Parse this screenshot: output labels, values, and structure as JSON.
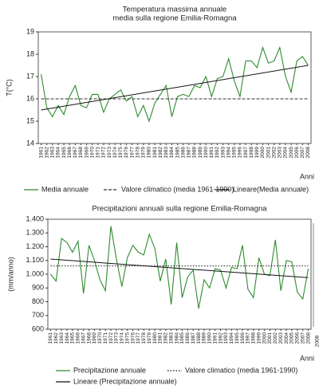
{
  "chart_data": [
    {
      "type": "line",
      "title": [
        "Temperatura massima annuale",
        "media sulla regione Emilia-Romagna"
      ],
      "y_label": "T(°C)",
      "x_label": "Anni",
      "x": [
        1961,
        1962,
        1963,
        1964,
        1965,
        1966,
        1967,
        1968,
        1969,
        1970,
        1971,
        1972,
        1973,
        1974,
        1975,
        1976,
        1977,
        1978,
        1979,
        1980,
        1981,
        1982,
        1983,
        1984,
        1985,
        1986,
        1987,
        1988,
        1989,
        1990,
        1991,
        1992,
        1993,
        1994,
        1995,
        1996,
        1997,
        1998,
        1999,
        2000,
        2001,
        2002,
        2003,
        2004,
        2005,
        2006,
        2007,
        2008
      ],
      "xlim": [
        1960.5,
        2008.5
      ],
      "ylim": [
        14,
        19
      ],
      "yticks": [
        14,
        15,
        16,
        17,
        18,
        19
      ],
      "series": [
        {
          "name": "Media annuale",
          "color": "#2e8b2e",
          "linestyle": "solid",
          "values": [
            17.1,
            15.6,
            15.2,
            15.7,
            15.3,
            16.1,
            16.6,
            15.7,
            15.6,
            16.2,
            16.2,
            15.4,
            16.0,
            16.2,
            16.4,
            15.9,
            16.1,
            15.2,
            15.7,
            15.0,
            15.8,
            16.2,
            16.6,
            15.2,
            16.1,
            16.2,
            16.1,
            16.6,
            16.5,
            17.0,
            16.1,
            16.9,
            17.0,
            17.8,
            16.8,
            16.1,
            17.7,
            17.7,
            17.4,
            18.3,
            17.6,
            17.7,
            18.3,
            17.0,
            16.3,
            17.7,
            17.9,
            17.5
          ]
        },
        {
          "name": "Valore climatico (media 1961-1990)",
          "color": "#333333",
          "linestyle": "dashed",
          "x": [
            1961,
            2008
          ],
          "values": [
            16.0,
            16.0
          ]
        },
        {
          "name": "Lineare(Media annuale)",
          "color": "#111111",
          "linestyle": "solid",
          "x": [
            1961,
            2008
          ],
          "values": [
            15.5,
            17.5
          ]
        }
      ]
    },
    {
      "type": "line",
      "title": [
        "Precipitazioni annuali sulla regione Emilia-Romagna"
      ],
      "y_label": "(mm/anno)",
      "x_label": "Anni",
      "x": [
        1961,
        1962,
        1963,
        1964,
        1965,
        1966,
        1967,
        1968,
        1969,
        1970,
        1971,
        1972,
        1973,
        1974,
        1975,
        1976,
        1977,
        1978,
        1979,
        1980,
        1981,
        1982,
        1983,
        1984,
        1985,
        1986,
        1987,
        1988,
        1989,
        1990,
        1991,
        1992,
        1993,
        1994,
        1995,
        1996,
        1997,
        1998,
        1999,
        2000,
        2001,
        2002,
        2003,
        2004,
        2005,
        2006,
        2007,
        2008
      ],
      "xlim": [
        1960.5,
        2008.5
      ],
      "ylim": [
        600,
        1400
      ],
      "yticks": [
        600,
        700,
        800,
        900,
        {
          "value": 1000,
          "label": "1.000"
        },
        {
          "value": 1100,
          "label": "1.100"
        },
        {
          "value": 1200,
          "label": "1.200"
        },
        {
          "value": 1300,
          "label": "1.300"
        },
        {
          "value": 1400,
          "label": "1.400"
        }
      ],
      "annotation": "2008",
      "series": [
        {
          "name": "Precipitazione annuale",
          "color": "#2e8b2e",
          "linestyle": "solid",
          "values": [
            1000,
            950,
            1260,
            1230,
            1160,
            1240,
            860,
            1210,
            1100,
            960,
            880,
            1350,
            1110,
            910,
            1120,
            1210,
            1160,
            1140,
            1290,
            1190,
            950,
            1110,
            780,
            1230,
            830,
            980,
            1030,
            750,
            960,
            900,
            1040,
            1030,
            900,
            1050,
            1040,
            1210,
            890,
            830,
            1120,
            1000,
            990,
            1250,
            880,
            1100,
            1090,
            870,
            820,
            1040
          ]
        },
        {
          "name": "Valore climatico  (media 1961-1990)",
          "color": "#111111",
          "linestyle": "dotted",
          "x": [
            1961,
            2008
          ],
          "values": [
            1060,
            1060
          ]
        },
        {
          "name": "Lineare (Precipitazione annuale)",
          "color": "#111111",
          "linestyle": "solid",
          "x": [
            1961,
            2008
          ],
          "values": [
            1110,
            975
          ]
        }
      ]
    }
  ]
}
